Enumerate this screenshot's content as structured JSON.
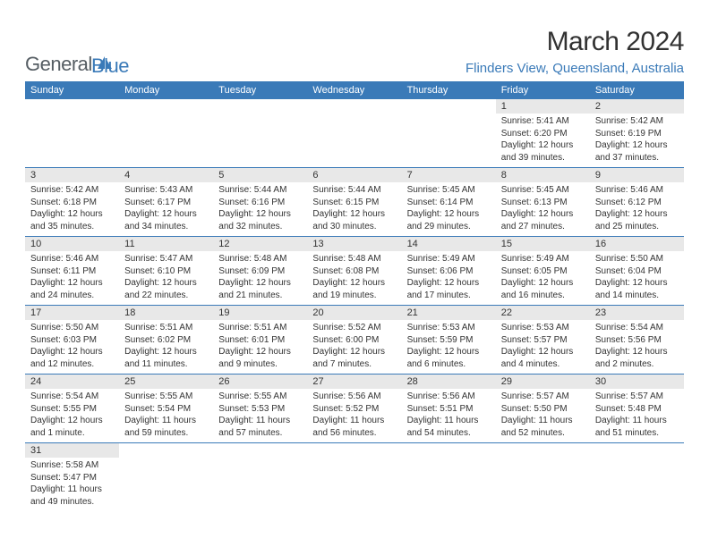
{
  "logo": {
    "text1": "General",
    "text2": "Blue",
    "color1": "#555d63",
    "color2": "#3a7ab8"
  },
  "title": "March 2024",
  "location": "Flinders View, Queensland, Australia",
  "accent_color": "#3a7ab8",
  "header_bg": "#3a7ab8",
  "daynum_bg": "#e8e8e8",
  "day_headers": [
    "Sunday",
    "Monday",
    "Tuesday",
    "Wednesday",
    "Thursday",
    "Friday",
    "Saturday"
  ],
  "weeks": [
    [
      null,
      null,
      null,
      null,
      null,
      {
        "n": "1",
        "sunrise": "5:41 AM",
        "sunset": "6:20 PM",
        "daylight": "12 hours and 39 minutes."
      },
      {
        "n": "2",
        "sunrise": "5:42 AM",
        "sunset": "6:19 PM",
        "daylight": "12 hours and 37 minutes."
      }
    ],
    [
      {
        "n": "3",
        "sunrise": "5:42 AM",
        "sunset": "6:18 PM",
        "daylight": "12 hours and 35 minutes."
      },
      {
        "n": "4",
        "sunrise": "5:43 AM",
        "sunset": "6:17 PM",
        "daylight": "12 hours and 34 minutes."
      },
      {
        "n": "5",
        "sunrise": "5:44 AM",
        "sunset": "6:16 PM",
        "daylight": "12 hours and 32 minutes."
      },
      {
        "n": "6",
        "sunrise": "5:44 AM",
        "sunset": "6:15 PM",
        "daylight": "12 hours and 30 minutes."
      },
      {
        "n": "7",
        "sunrise": "5:45 AM",
        "sunset": "6:14 PM",
        "daylight": "12 hours and 29 minutes."
      },
      {
        "n": "8",
        "sunrise": "5:45 AM",
        "sunset": "6:13 PM",
        "daylight": "12 hours and 27 minutes."
      },
      {
        "n": "9",
        "sunrise": "5:46 AM",
        "sunset": "6:12 PM",
        "daylight": "12 hours and 25 minutes."
      }
    ],
    [
      {
        "n": "10",
        "sunrise": "5:46 AM",
        "sunset": "6:11 PM",
        "daylight": "12 hours and 24 minutes."
      },
      {
        "n": "11",
        "sunrise": "5:47 AM",
        "sunset": "6:10 PM",
        "daylight": "12 hours and 22 minutes."
      },
      {
        "n": "12",
        "sunrise": "5:48 AM",
        "sunset": "6:09 PM",
        "daylight": "12 hours and 21 minutes."
      },
      {
        "n": "13",
        "sunrise": "5:48 AM",
        "sunset": "6:08 PM",
        "daylight": "12 hours and 19 minutes."
      },
      {
        "n": "14",
        "sunrise": "5:49 AM",
        "sunset": "6:06 PM",
        "daylight": "12 hours and 17 minutes."
      },
      {
        "n": "15",
        "sunrise": "5:49 AM",
        "sunset": "6:05 PM",
        "daylight": "12 hours and 16 minutes."
      },
      {
        "n": "16",
        "sunrise": "5:50 AM",
        "sunset": "6:04 PM",
        "daylight": "12 hours and 14 minutes."
      }
    ],
    [
      {
        "n": "17",
        "sunrise": "5:50 AM",
        "sunset": "6:03 PM",
        "daylight": "12 hours and 12 minutes."
      },
      {
        "n": "18",
        "sunrise": "5:51 AM",
        "sunset": "6:02 PM",
        "daylight": "12 hours and 11 minutes."
      },
      {
        "n": "19",
        "sunrise": "5:51 AM",
        "sunset": "6:01 PM",
        "daylight": "12 hours and 9 minutes."
      },
      {
        "n": "20",
        "sunrise": "5:52 AM",
        "sunset": "6:00 PM",
        "daylight": "12 hours and 7 minutes."
      },
      {
        "n": "21",
        "sunrise": "5:53 AM",
        "sunset": "5:59 PM",
        "daylight": "12 hours and 6 minutes."
      },
      {
        "n": "22",
        "sunrise": "5:53 AM",
        "sunset": "5:57 PM",
        "daylight": "12 hours and 4 minutes."
      },
      {
        "n": "23",
        "sunrise": "5:54 AM",
        "sunset": "5:56 PM",
        "daylight": "12 hours and 2 minutes."
      }
    ],
    [
      {
        "n": "24",
        "sunrise": "5:54 AM",
        "sunset": "5:55 PM",
        "daylight": "12 hours and 1 minute."
      },
      {
        "n": "25",
        "sunrise": "5:55 AM",
        "sunset": "5:54 PM",
        "daylight": "11 hours and 59 minutes."
      },
      {
        "n": "26",
        "sunrise": "5:55 AM",
        "sunset": "5:53 PM",
        "daylight": "11 hours and 57 minutes."
      },
      {
        "n": "27",
        "sunrise": "5:56 AM",
        "sunset": "5:52 PM",
        "daylight": "11 hours and 56 minutes."
      },
      {
        "n": "28",
        "sunrise": "5:56 AM",
        "sunset": "5:51 PM",
        "daylight": "11 hours and 54 minutes."
      },
      {
        "n": "29",
        "sunrise": "5:57 AM",
        "sunset": "5:50 PM",
        "daylight": "11 hours and 52 minutes."
      },
      {
        "n": "30",
        "sunrise": "5:57 AM",
        "sunset": "5:48 PM",
        "daylight": "11 hours and 51 minutes."
      }
    ],
    [
      {
        "n": "31",
        "sunrise": "5:58 AM",
        "sunset": "5:47 PM",
        "daylight": "11 hours and 49 minutes."
      },
      null,
      null,
      null,
      null,
      null,
      null
    ]
  ]
}
